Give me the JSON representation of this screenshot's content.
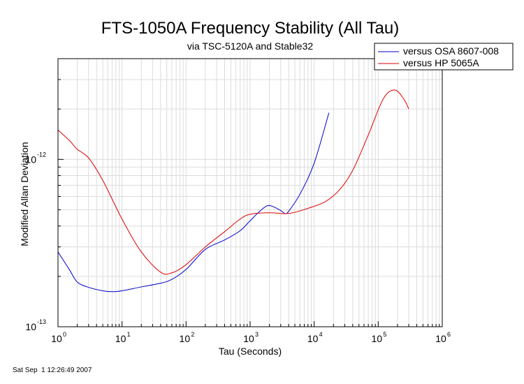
{
  "chart_data": {
    "type": "line",
    "title": "FTS-1050A Frequency Stability (All Tau)",
    "subtitle": "via TSC-5120A and Stable32",
    "xlabel": "Tau (Seconds)",
    "ylabel": "Modified Allan Deviation",
    "x_scale": "log",
    "y_scale": "log",
    "xlim": [
      1,
      1000000
    ],
    "ylim": [
      1e-13,
      4e-12
    ],
    "x_ticks": [
      {
        "base": "10",
        "exp": "0"
      },
      {
        "base": "10",
        "exp": "1"
      },
      {
        "base": "10",
        "exp": "2"
      },
      {
        "base": "10",
        "exp": "3"
      },
      {
        "base": "10",
        "exp": "4"
      },
      {
        "base": "10",
        "exp": "5"
      },
      {
        "base": "10",
        "exp": "6"
      }
    ],
    "y_ticks": [
      {
        "base": "10",
        "exp": "-13"
      },
      {
        "base": "10",
        "exp": "-12"
      }
    ],
    "grid": true,
    "legend_position": "top-right",
    "series": [
      {
        "name": "versus OSA 8607-008",
        "color": "#0000cc",
        "points": [
          [
            1,
            2.8e-13
          ],
          [
            1.5,
            2.2e-13
          ],
          [
            2,
            1.85e-13
          ],
          [
            3,
            1.72e-13
          ],
          [
            5,
            1.64e-13
          ],
          [
            7,
            1.62e-13
          ],
          [
            10,
            1.64e-13
          ],
          [
            20,
            1.73e-13
          ],
          [
            40,
            1.82e-13
          ],
          [
            60,
            1.92e-13
          ],
          [
            100,
            2.2e-13
          ],
          [
            200,
            2.9e-13
          ],
          [
            400,
            3.3e-13
          ],
          [
            700,
            3.75e-13
          ],
          [
            1000,
            4.3e-13
          ],
          [
            1500,
            5e-13
          ],
          [
            2000,
            5.3e-13
          ],
          [
            3000,
            4.95e-13
          ],
          [
            3500,
            4.75e-13
          ],
          [
            4000,
            4.9e-13
          ],
          [
            6000,
            6.2e-13
          ],
          [
            10000,
            9.5e-13
          ],
          [
            17000,
            1.9e-12
          ]
        ]
      },
      {
        "name": "versus HP 5065A",
        "color": "#dd0000",
        "points": [
          [
            1,
            1.5e-12
          ],
          [
            1.5,
            1.3e-12
          ],
          [
            2,
            1.15e-12
          ],
          [
            3,
            1.02e-12
          ],
          [
            5,
            7.5e-13
          ],
          [
            10,
            4.4e-13
          ],
          [
            20,
            2.8e-13
          ],
          [
            40,
            2.12e-13
          ],
          [
            60,
            2.1e-13
          ],
          [
            100,
            2.35e-13
          ],
          [
            200,
            3e-13
          ],
          [
            400,
            3.7e-13
          ],
          [
            700,
            4.4e-13
          ],
          [
            1000,
            4.7e-13
          ],
          [
            2000,
            4.8e-13
          ],
          [
            4000,
            4.75e-13
          ],
          [
            8000,
            5.1e-13
          ],
          [
            15000,
            5.6e-13
          ],
          [
            25000,
            6.6e-13
          ],
          [
            40000,
            8.6e-13
          ],
          [
            70000,
            1.4e-12
          ],
          [
            120000,
            2.3e-12
          ],
          [
            180000,
            2.6e-12
          ],
          [
            250000,
            2.3e-12
          ],
          [
            300000,
            2e-12
          ]
        ]
      }
    ]
  },
  "footer": {
    "timestamp": "Sat Sep  1 12:26:49 2007"
  }
}
